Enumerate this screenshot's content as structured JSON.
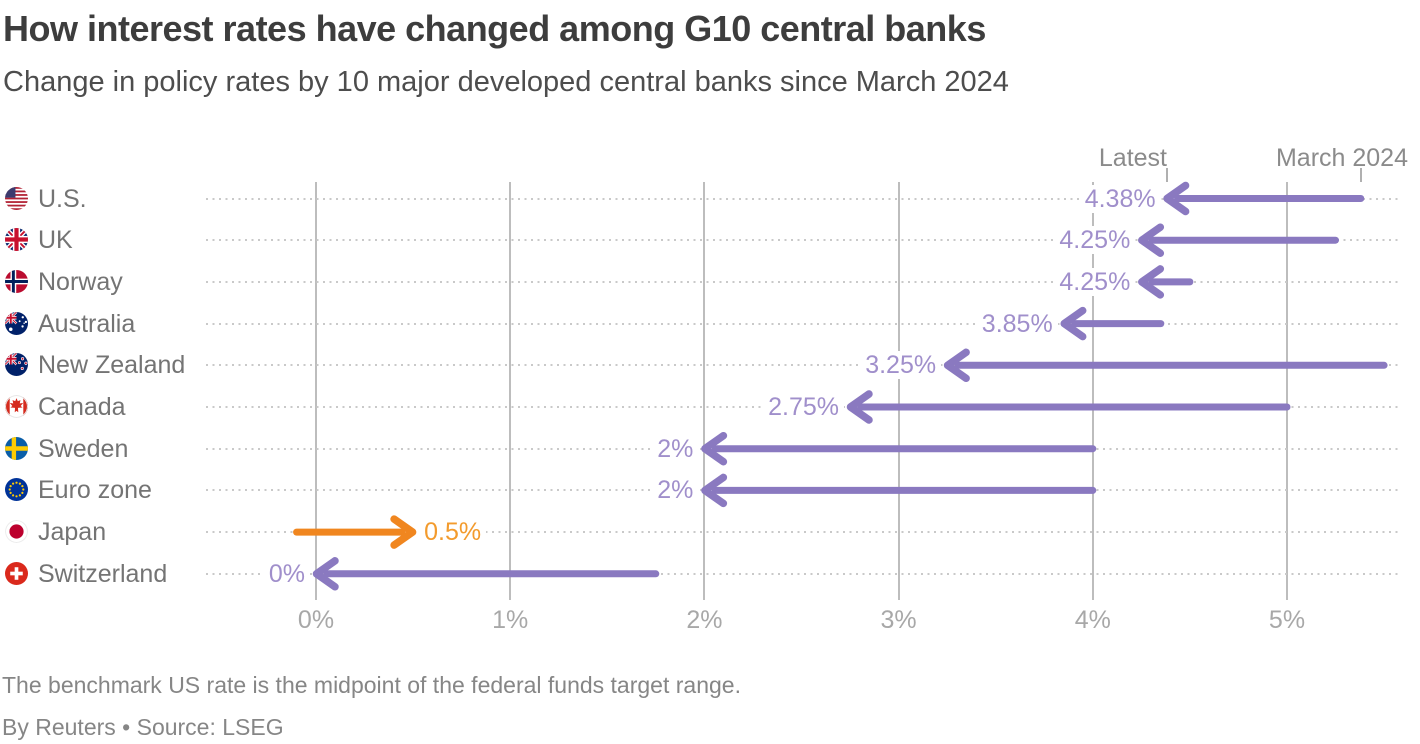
{
  "header": {
    "title": "How interest rates have changed among G10 central banks",
    "subtitle": "Change in policy rates by 10 major developed central banks since March 2024"
  },
  "legend": {
    "latest_label": "Latest",
    "march_label": "March 2024"
  },
  "footer": {
    "note": "The benchmark US rate is the midpoint of the federal funds target range.",
    "byline": "By Reuters • Source: LSEG"
  },
  "chart_data": {
    "type": "dumbbell-arrow",
    "unit": "%",
    "categories": [
      "U.S.",
      "UK",
      "Norway",
      "Australia",
      "New Zealand",
      "Canada",
      "Sweden",
      "Euro zone",
      "Japan",
      "Switzerland"
    ],
    "series": [
      {
        "country": "U.S.",
        "flag": "us",
        "march_2024": 5.38,
        "latest": 4.38,
        "latest_label": "4.38%",
        "direction": "cut"
      },
      {
        "country": "UK",
        "flag": "uk",
        "march_2024": 5.25,
        "latest": 4.25,
        "latest_label": "4.25%",
        "direction": "cut"
      },
      {
        "country": "Norway",
        "flag": "no",
        "march_2024": 4.5,
        "latest": 4.25,
        "latest_label": "4.25%",
        "direction": "cut"
      },
      {
        "country": "Australia",
        "flag": "au",
        "march_2024": 4.35,
        "latest": 3.85,
        "latest_label": "3.85%",
        "direction": "cut"
      },
      {
        "country": "New Zealand",
        "flag": "nz",
        "march_2024": 5.5,
        "latest": 3.25,
        "latest_label": "3.25%",
        "direction": "cut"
      },
      {
        "country": "Canada",
        "flag": "ca",
        "march_2024": 5.0,
        "latest": 2.75,
        "latest_label": "2.75%",
        "direction": "cut"
      },
      {
        "country": "Sweden",
        "flag": "se",
        "march_2024": 4.0,
        "latest": 2.0,
        "latest_label": "2%",
        "direction": "cut"
      },
      {
        "country": "Euro zone",
        "flag": "eu",
        "march_2024": 4.0,
        "latest": 2.0,
        "latest_label": "2%",
        "direction": "cut"
      },
      {
        "country": "Japan",
        "flag": "jp",
        "march_2024": -0.1,
        "latest": 0.5,
        "latest_label": "0.5%",
        "direction": "hike"
      },
      {
        "country": "Switzerland",
        "flag": "ch",
        "march_2024": 1.75,
        "latest": 0.0,
        "latest_label": "0%",
        "direction": "cut"
      }
    ],
    "x_axis": {
      "tick_labels": [
        "0%",
        "1%",
        "2%",
        "3%",
        "4%",
        "5%"
      ],
      "tick_values": [
        0,
        1,
        2,
        3,
        4,
        5
      ],
      "range": [
        -0.57,
        5.57
      ],
      "grid": true
    },
    "legend_tick_values": [
      4.38,
      5.38
    ],
    "colors": {
      "rate_cut_arrow": "#8a79c0",
      "rate_hike_arrow": "#f0861f",
      "rate_cut_label": "#a08fcb",
      "rate_hike_label": "#f39b2d"
    }
  }
}
